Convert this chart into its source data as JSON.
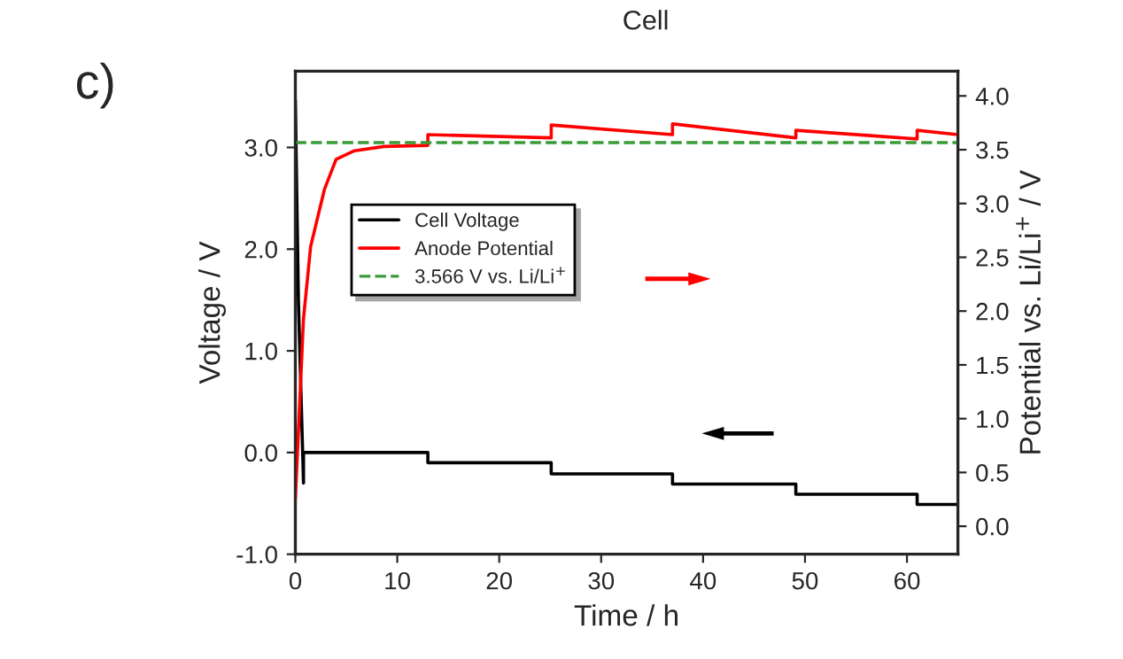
{
  "chart_data": {
    "type": "line",
    "xlabel": "Time / h",
    "ylabel": "Voltage / V",
    "y2label": "Potential vs. Li/Li$^{+}$ / V",
    "annotations": [
      "Cell",
      "c)"
    ],
    "series": [
      {
        "name": "Cell Voltage",
        "color": "#000000",
        "x": [
          0,
          0.3,
          0.8,
          0.8,
          13.0,
          13.0,
          25.1,
          25.1,
          37.0,
          37.0,
          49.1,
          49.1,
          61.0,
          61.0,
          65
        ],
        "values": [
          3.46,
          1.5,
          -0.3,
          0.0,
          0.0,
          -0.1,
          -0.1,
          -0.21,
          -0.21,
          -0.31,
          -0.31,
          -0.41,
          -0.41,
          -0.51,
          -0.51
        ]
      },
      {
        "name": "Anode Potential",
        "color": "#ff0000",
        "axis": "y2",
        "x": [
          0,
          0.8,
          1.5,
          2.85,
          4.0,
          5.8,
          8.7,
          13.0,
          13.0,
          25.1,
          25.1,
          37.0,
          37.0,
          49.1,
          49.1,
          61.0,
          61.0,
          65
        ],
        "values": [
          0.25,
          1.93,
          2.6,
          3.13,
          3.41,
          3.49,
          3.53,
          3.54,
          3.64,
          3.61,
          3.73,
          3.64,
          3.74,
          3.61,
          3.68,
          3.6,
          3.68,
          3.64
        ]
      }
    ],
    "ref_lines": [
      {
        "axis": "y2",
        "value": 3.566,
        "label": "3.566 V vs. Li/Li$^{+}$",
        "color": "#3a9a3a",
        "line_style": "dashed"
      }
    ],
    "xlim": [
      0,
      65
    ],
    "xticks": [
      0,
      10,
      20,
      30,
      40,
      50,
      60
    ],
    "ylim": [
      -1.0,
      3.75
    ],
    "yticks": [
      {
        "value": -1,
        "label": "-1.0"
      },
      {
        "value": 0,
        "label": "0.0"
      },
      {
        "value": 1,
        "label": "1.0"
      },
      {
        "value": 2,
        "label": "2.0"
      },
      {
        "value": 3,
        "label": "3.0"
      }
    ],
    "y2lim": [
      -0.26,
      4.23
    ],
    "y2ticks": [
      {
        "value": 0,
        "label": "0.0"
      },
      {
        "value": 0.5,
        "label": "0.5"
      },
      {
        "value": 1,
        "label": "1.0"
      },
      {
        "value": 1.5,
        "label": "1.5"
      },
      {
        "value": 2,
        "label": "2.0"
      },
      {
        "value": 2.5,
        "label": "2.5"
      },
      {
        "value": 3,
        "label": "3.0"
      },
      {
        "value": 3.5,
        "label": "3.5"
      },
      {
        "value": 4,
        "label": "4.0"
      }
    ],
    "grid": false,
    "legend": "left",
    "line_style": "solid",
    "marker": "none"
  }
}
